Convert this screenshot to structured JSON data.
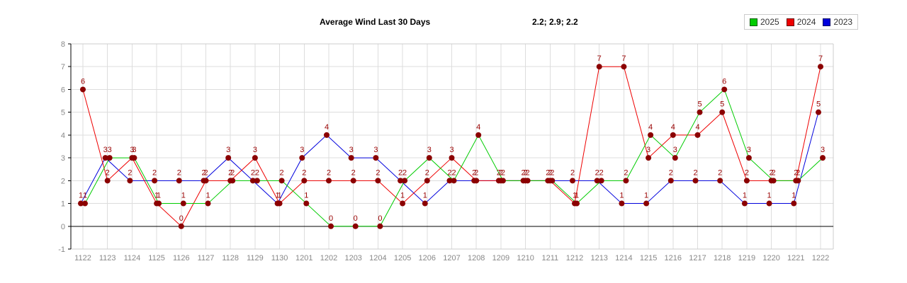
{
  "header": {
    "title": "Average Wind Last 30 Days",
    "averages_text": "2.2; 2.9; 2.2"
  },
  "legend": [
    {
      "label": "2025",
      "color": "#00CC00"
    },
    {
      "label": "2024",
      "color": "#EE0000"
    },
    {
      "label": "2023",
      "color": "#0000DD"
    }
  ],
  "chart_data": {
    "type": "line",
    "title": "Average Wind Last 30 Days",
    "xlabel": "",
    "ylabel": "",
    "ylim": [
      -1,
      8
    ],
    "yticks": [
      8,
      7,
      6,
      5,
      4,
      3,
      2,
      1,
      0,
      -1
    ],
    "grid": true,
    "legend_position": "top-right",
    "categories": [
      "1122",
      "1123",
      "1124",
      "1125",
      "1126",
      "1127",
      "1128",
      "1129",
      "1130",
      "1201",
      "1202",
      "1203",
      "1204",
      "1205",
      "1206",
      "1207",
      "1208",
      "1209",
      "1210",
      "1211",
      "1212",
      "1213",
      "1214",
      "1215",
      "1216",
      "1217",
      "1218",
      "1219",
      "1220",
      "1221",
      "1222"
    ],
    "series": [
      {
        "name": "2023",
        "color": "#0000DD",
        "x_offset": -3,
        "values": [
          1,
          3,
          2,
          2,
          2,
          2,
          3,
          2,
          1,
          3,
          4,
          3,
          3,
          2,
          1,
          2,
          2,
          2,
          2,
          2,
          2,
          2,
          1,
          1,
          2,
          2,
          2,
          1,
          1,
          1,
          5
        ]
      },
      {
        "name": "2024",
        "color": "#EE0000",
        "x_offset": 0,
        "values": [
          6,
          2,
          3,
          1,
          0,
          2,
          2,
          3,
          1,
          2,
          2,
          2,
          2,
          1,
          2,
          3,
          2,
          2,
          2,
          2,
          1,
          7,
          7,
          3,
          4,
          4,
          5,
          2,
          2,
          2,
          7
        ]
      },
      {
        "name": "2025",
        "color": "#00CC00",
        "x_offset": 3,
        "values": [
          1,
          3,
          3,
          1,
          1,
          1,
          2,
          2,
          2,
          1,
          0,
          0,
          0,
          2,
          3,
          2,
          4,
          2,
          2,
          2,
          1,
          2,
          2,
          4,
          3,
          5,
          6,
          3,
          2,
          2,
          3
        ]
      }
    ],
    "marker_color": "#8B0000",
    "point_label_color": "#990000",
    "grid_color": "#DDDDDD",
    "border_color": "#CCCCCC",
    "axis_color": "#000000",
    "tick_label_color": "#888888"
  }
}
